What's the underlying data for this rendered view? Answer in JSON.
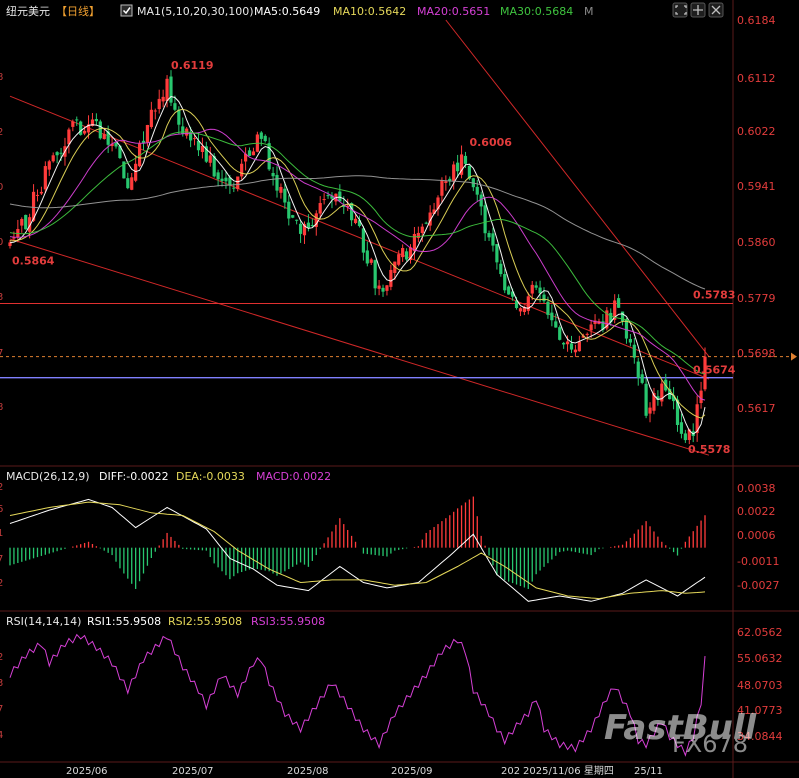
{
  "header": {
    "symbol": "纽元美元",
    "period": "【日线】",
    "ma_label": "MA1(5,10,20,30,100)",
    "ma5": "MA5:0.5649",
    "ma10": "MA10:0.5642",
    "ma20": "MA20:0.5651",
    "ma30": "MA30:0.5684",
    "m_badge": "M"
  },
  "macd_header": {
    "label": "MACD(26,12,9)",
    "diff": "DIFF:-0.0022",
    "dea": "DEA:-0.0033",
    "macd": "MACD:0.0022"
  },
  "rsi_header": {
    "label": "RSI(14,14,14)",
    "rsi1": "RSI1:55.9508",
    "rsi2": "RSI2:55.9508",
    "rsi3": "RSI3:55.9508"
  },
  "watermark": {
    "brand": "FastBull",
    "id": "FX678"
  },
  "left_fragments": [
    "8",
    "2",
    "0",
    "0",
    "3",
    "7",
    "8",
    "2",
    "6",
    "1",
    "7",
    "2",
    "2",
    "3",
    "7",
    "4"
  ],
  "colors": {
    "up": "#ff3b3b",
    "down": "#28c76f",
    "ma5": "#ffffff",
    "ma10": "#e5d85a",
    "ma20": "#d640d6",
    "ma30": "#3fc43f",
    "ma100": "#9a9a9a",
    "diff": "#ffffff",
    "dea": "#e5d85a",
    "rsi": "#d640d6",
    "resistance": "#e03030",
    "support": "#8080ff",
    "channel": "#d02828",
    "axis": "#e23c3c"
  },
  "chart_data": [
    {
      "type": "candlestick",
      "title": "纽元美元",
      "ylim": [
        0.555,
        0.62
      ],
      "y_ticks": [
        "0.6184",
        "0.6112",
        "0.6022",
        "0.5941",
        "0.5860",
        "0.5779",
        "0.5698",
        "0.5617"
      ],
      "x_labels": [
        "2025/06",
        "2025/07",
        "2025/08",
        "2025/09",
        "202",
        "2025/11/06 星期四",
        "25/11"
      ],
      "annotations": [
        {
          "text": "0.6119",
          "value": 0.6119,
          "kind": "high"
        },
        {
          "text": "0.6006",
          "value": 0.6006,
          "kind": "high"
        },
        {
          "text": "0.5864",
          "value": 0.5864,
          "kind": "low"
        },
        {
          "text": "0.5783",
          "value": 0.5783,
          "kind": "level"
        },
        {
          "text": "0.5674",
          "value": 0.5674,
          "kind": "level"
        },
        {
          "text": "0.5578",
          "value": 0.5578,
          "kind": "low"
        }
      ],
      "current_price": 0.5705,
      "horizontal_lines": [
        {
          "value": 0.5783,
          "color": "#e03030"
        },
        {
          "value": 0.5674,
          "color": "#8080ff"
        }
      ],
      "price_path": [
        [
          0,
          0.587
        ],
        [
          4,
          0.5905
        ],
        [
          8,
          0.596
        ],
        [
          12,
          0.601
        ],
        [
          16,
          0.604
        ],
        [
          20,
          0.605
        ],
        [
          24,
          0.603
        ],
        [
          28,
          0.6
        ],
        [
          30,
          0.595
        ],
        [
          34,
          0.603
        ],
        [
          38,
          0.608
        ],
        [
          40,
          0.611
        ],
        [
          42,
          0.606
        ],
        [
          46,
          0.602
        ],
        [
          50,
          0.6
        ],
        [
          54,
          0.597
        ],
        [
          56,
          0.595
        ],
        [
          60,
          0.599
        ],
        [
          64,
          0.603
        ],
        [
          66,
          0.599
        ],
        [
          70,
          0.593
        ],
        [
          74,
          0.588
        ],
        [
          78,
          0.592
        ],
        [
          82,
          0.595
        ],
        [
          84,
          0.593
        ],
        [
          88,
          0.59
        ],
        [
          92,
          0.584
        ],
        [
          94,
          0.58
        ],
        [
          98,
          0.584
        ],
        [
          102,
          0.586
        ],
        [
          104,
          0.59
        ],
        [
          108,
          0.593
        ],
        [
          110,
          0.595
        ],
        [
          114,
          0.599
        ],
        [
          116,
          0.6
        ],
        [
          118,
          0.595
        ],
        [
          122,
          0.588
        ],
        [
          124,
          0.584
        ],
        [
          126,
          0.579
        ],
        [
          130,
          0.577
        ],
        [
          132,
          0.578
        ],
        [
          134,
          0.582
        ],
        [
          136,
          0.58
        ],
        [
          138,
          0.575
        ],
        [
          140,
          0.572
        ],
        [
          144,
          0.573
        ],
        [
          148,
          0.574
        ],
        [
          150,
          0.575
        ],
        [
          152,
          0.576
        ],
        [
          154,
          0.578
        ],
        [
          156,
          0.576
        ],
        [
          158,
          0.572
        ],
        [
          160,
          0.568
        ],
        [
          162,
          0.563
        ],
        [
          164,
          0.564
        ],
        [
          166,
          0.566
        ],
        [
          168,
          0.565
        ],
        [
          170,
          0.56
        ],
        [
          172,
          0.5578
        ],
        [
          174,
          0.56
        ],
        [
          176,
          0.564
        ],
        [
          177,
          0.5705
        ]
      ],
      "series": [
        {
          "name": "MA5",
          "lag": 2.5
        },
        {
          "name": "MA10",
          "lag": 5
        },
        {
          "name": "MA20",
          "lag": 10
        },
        {
          "name": "MA30",
          "lag": 15
        },
        {
          "name": "MA100",
          "lag": 50
        }
      ]
    },
    {
      "type": "bar",
      "title": "MACD(26,12,9)",
      "ylim": [
        -0.0042,
        0.0046
      ],
      "y_ticks": [
        "0.0038",
        "0.0022",
        "0.0006",
        "-0.0011",
        "-0.0027"
      ],
      "diff_path": [
        [
          0,
          0.0018
        ],
        [
          10,
          0.0028
        ],
        [
          20,
          0.0036
        ],
        [
          26,
          0.003
        ],
        [
          32,
          0.0015
        ],
        [
          40,
          0.003
        ],
        [
          50,
          0.0014
        ],
        [
          56,
          -0.0008
        ],
        [
          62,
          -0.0016
        ],
        [
          68,
          -0.0028
        ],
        [
          76,
          -0.0032
        ],
        [
          84,
          -0.0014
        ],
        [
          90,
          -0.0026
        ],
        [
          96,
          -0.003
        ],
        [
          104,
          -0.0026
        ],
        [
          112,
          -0.0006
        ],
        [
          118,
          0.001
        ],
        [
          124,
          -0.002
        ],
        [
          132,
          -0.004
        ],
        [
          140,
          -0.0036
        ],
        [
          148,
          -0.004
        ],
        [
          156,
          -0.0034
        ],
        [
          162,
          -0.0024
        ],
        [
          170,
          -0.0036
        ],
        [
          177,
          -0.0022
        ]
      ],
      "dea_path": [
        [
          0,
          0.0024
        ],
        [
          10,
          0.003
        ],
        [
          20,
          0.0034
        ],
        [
          28,
          0.0032
        ],
        [
          36,
          0.0026
        ],
        [
          44,
          0.0024
        ],
        [
          52,
          0.0012
        ],
        [
          58,
          -0.0002
        ],
        [
          66,
          -0.0016
        ],
        [
          74,
          -0.0026
        ],
        [
          82,
          -0.0024
        ],
        [
          90,
          -0.0024
        ],
        [
          98,
          -0.0028
        ],
        [
          106,
          -0.0026
        ],
        [
          114,
          -0.0014
        ],
        [
          120,
          -0.0004
        ],
        [
          126,
          -0.0014
        ],
        [
          134,
          -0.003
        ],
        [
          142,
          -0.0036
        ],
        [
          150,
          -0.0038
        ],
        [
          158,
          -0.0034
        ],
        [
          166,
          -0.0032
        ],
        [
          172,
          -0.0034
        ],
        [
          177,
          -0.0033
        ]
      ]
    },
    {
      "type": "line",
      "title": "RSI(14,14,14)",
      "ylim": [
        30.0,
        64.0
      ],
      "y_ticks": [
        "62.0562",
        "55.0632",
        "48.0703",
        "41.0773",
        "34.0844"
      ],
      "series": [
        {
          "name": "RSI1",
          "values": [
            [
              0,
              52
            ],
            [
              4,
              57
            ],
            [
              8,
              60
            ],
            [
              10,
              55
            ],
            [
              14,
              60
            ],
            [
              18,
              62
            ],
            [
              22,
              59
            ],
            [
              26,
              55
            ],
            [
              30,
              48
            ],
            [
              34,
              56
            ],
            [
              38,
              60
            ],
            [
              40,
              62
            ],
            [
              44,
              54
            ],
            [
              48,
              48
            ],
            [
              50,
              44
            ],
            [
              54,
              52
            ],
            [
              58,
              47
            ],
            [
              62,
              55
            ],
            [
              64,
              56
            ],
            [
              66,
              50
            ],
            [
              70,
              42
            ],
            [
              74,
              38
            ],
            [
              78,
              44
            ],
            [
              82,
              50
            ],
            [
              86,
              44
            ],
            [
              90,
              38
            ],
            [
              94,
              34
            ],
            [
              98,
              42
            ],
            [
              102,
              47
            ],
            [
              106,
              52
            ],
            [
              110,
              58
            ],
            [
              114,
              61
            ],
            [
              116,
              58
            ],
            [
              118,
              48
            ],
            [
              122,
              42
            ],
            [
              124,
              38
            ],
            [
              126,
              35
            ],
            [
              130,
              40
            ],
            [
              132,
              42
            ],
            [
              134,
              46
            ],
            [
              136,
              38
            ],
            [
              140,
              34
            ],
            [
              144,
              33
            ],
            [
              148,
              38
            ],
            [
              152,
              46
            ],
            [
              154,
              49
            ],
            [
              158,
              42
            ],
            [
              160,
              35
            ],
            [
              162,
              34
            ],
            [
              166,
              40
            ],
            [
              168,
              36
            ],
            [
              172,
              32
            ],
            [
              174,
              36
            ],
            [
              176,
              45
            ],
            [
              177,
              55.9508
            ]
          ]
        }
      ]
    }
  ]
}
